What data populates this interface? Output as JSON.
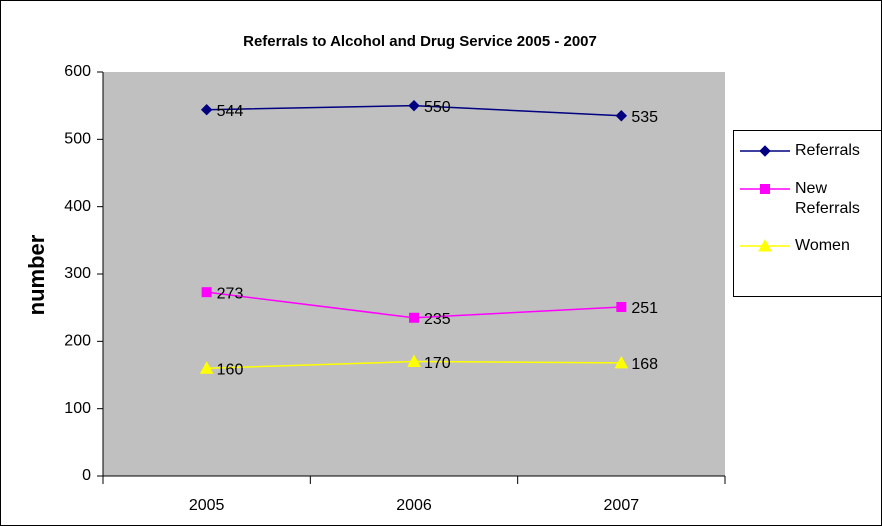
{
  "chart_data": {
    "type": "line",
    "title": "Referrals to Alcohol and Drug Service 2005 - 2007",
    "y_label": "number",
    "categories": [
      "2005",
      "2006",
      "2007"
    ],
    "series": [
      {
        "name": "Referrals",
        "color": "#000080",
        "marker": "diamond",
        "values": [
          544,
          550,
          535
        ]
      },
      {
        "name": "New Referrals",
        "color": "#ff00ff",
        "marker": "square",
        "values": [
          273,
          235,
          251
        ]
      },
      {
        "name": "Women",
        "color": "#ffff00",
        "marker": "triangle",
        "values": [
          160,
          170,
          168
        ]
      }
    ],
    "ylim": [
      0,
      600
    ],
    "yticks": [
      0,
      100,
      200,
      300,
      400,
      500,
      600
    ],
    "plot_background": "#c0c0c0",
    "legend": "right",
    "data_labels": true
  }
}
